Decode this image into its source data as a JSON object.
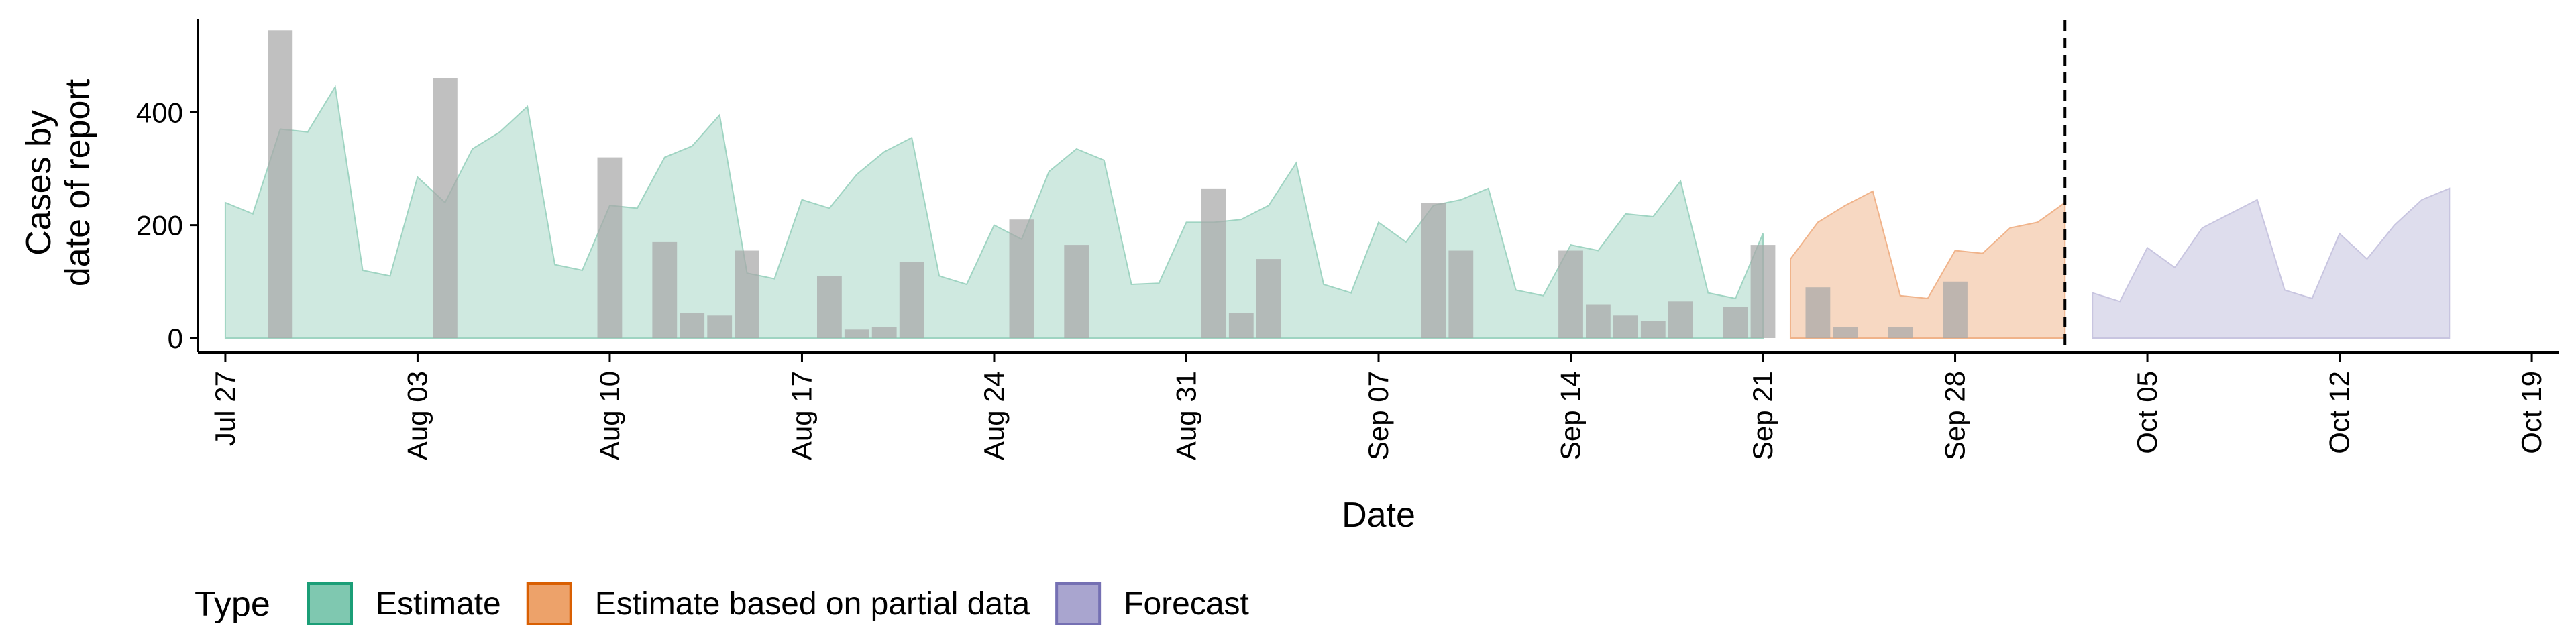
{
  "chart_data": {
    "type": "area",
    "xlabel": "Date",
    "ylabel_lines": [
      "Cases by",
      "date of report"
    ],
    "yticks": [
      0,
      200,
      400
    ],
    "ylim": [
      -25,
      575
    ],
    "x_start": "2020-07-26",
    "x_end": "2020-10-20",
    "xticks": [
      {
        "date": "2020-07-27",
        "label": "Jul 27"
      },
      {
        "date": "2020-08-03",
        "label": "Aug 03"
      },
      {
        "date": "2020-08-10",
        "label": "Aug 10"
      },
      {
        "date": "2020-08-17",
        "label": "Aug 17"
      },
      {
        "date": "2020-08-24",
        "label": "Aug 24"
      },
      {
        "date": "2020-08-31",
        "label": "Aug 31"
      },
      {
        "date": "2020-09-07",
        "label": "Sep 07"
      },
      {
        "date": "2020-09-14",
        "label": "Sep 14"
      },
      {
        "date": "2020-09-21",
        "label": "Sep 21"
      },
      {
        "date": "2020-09-28",
        "label": "Sep 28"
      },
      {
        "date": "2020-10-05",
        "label": "Oct 05"
      },
      {
        "date": "2020-10-12",
        "label": "Oct 12"
      },
      {
        "date": "2020-10-19",
        "label": "Oct 19"
      }
    ],
    "forecast_line_date": "2020-10-02",
    "legend": {
      "title": "Type",
      "position": "bottom-left",
      "entries": [
        {
          "label": "Estimate",
          "fill": "#7fc8b0",
          "stroke": "#1b9e77"
        },
        {
          "label": "Estimate based on partial data",
          "fill": "#eda26a",
          "stroke": "#d95f02"
        },
        {
          "label": "Forecast",
          "fill": "#a9a5cf",
          "stroke": "#7570b3"
        }
      ]
    },
    "series": [
      {
        "name": "Estimate",
        "fill": "#cfe9e0",
        "stroke": "#9fd4c2",
        "start_date": "2020-07-27",
        "values": [
          240,
          220,
          370,
          365,
          445,
          120,
          110,
          285,
          240,
          335,
          365,
          410,
          130,
          120,
          235,
          230,
          320,
          340,
          395,
          115,
          105,
          245,
          230,
          290,
          330,
          355,
          110,
          95,
          200,
          175,
          295,
          335,
          315,
          95,
          97,
          205,
          205,
          210,
          235,
          310,
          95,
          80,
          205,
          170,
          235,
          245,
          265,
          85,
          75,
          165,
          155,
          220,
          215,
          278,
          80,
          70,
          185
        ]
      },
      {
        "name": "Estimate based on partial data",
        "fill": "#f7d8c2",
        "stroke": "#f0b38a",
        "start_date": "2020-09-22",
        "values": [
          140,
          205,
          235,
          260,
          75,
          70,
          155,
          150,
          195,
          205,
          240
        ]
      },
      {
        "name": "Forecast",
        "fill": "#dedded",
        "stroke": "#c8c5e0",
        "start_date": "2020-10-03",
        "values": [
          80,
          65,
          160,
          125,
          195,
          220,
          245,
          85,
          70,
          185,
          140,
          200,
          245,
          265
        ]
      }
    ],
    "reported_cases": {
      "name": "Cases by date of report",
      "fill": "#a8a8a8",
      "bars": [
        {
          "date": "2020-07-29",
          "value": 545
        },
        {
          "date": "2020-08-04",
          "value": 460
        },
        {
          "date": "2020-08-10",
          "value": 320
        },
        {
          "date": "2020-08-12",
          "value": 170
        },
        {
          "date": "2020-08-13",
          "value": 45
        },
        {
          "date": "2020-08-14",
          "value": 40
        },
        {
          "date": "2020-08-15",
          "value": 155
        },
        {
          "date": "2020-08-18",
          "value": 110
        },
        {
          "date": "2020-08-19",
          "value": 15
        },
        {
          "date": "2020-08-20",
          "value": 20
        },
        {
          "date": "2020-08-21",
          "value": 135
        },
        {
          "date": "2020-08-25",
          "value": 210
        },
        {
          "date": "2020-08-27",
          "value": 165
        },
        {
          "date": "2020-09-01",
          "value": 265
        },
        {
          "date": "2020-09-02",
          "value": 45
        },
        {
          "date": "2020-09-03",
          "value": 140
        },
        {
          "date": "2020-09-09",
          "value": 240
        },
        {
          "date": "2020-09-10",
          "value": 155
        },
        {
          "date": "2020-09-14",
          "value": 155
        },
        {
          "date": "2020-09-15",
          "value": 60
        },
        {
          "date": "2020-09-16",
          "value": 40
        },
        {
          "date": "2020-09-17",
          "value": 30
        },
        {
          "date": "2020-09-18",
          "value": 65
        },
        {
          "date": "2020-09-20",
          "value": 55
        },
        {
          "date": "2020-09-21",
          "value": 165
        },
        {
          "date": "2020-09-23",
          "value": 90
        },
        {
          "date": "2020-09-24",
          "value": 20
        },
        {
          "date": "2020-09-26",
          "value": 20
        },
        {
          "date": "2020-09-28",
          "value": 100
        }
      ]
    }
  }
}
